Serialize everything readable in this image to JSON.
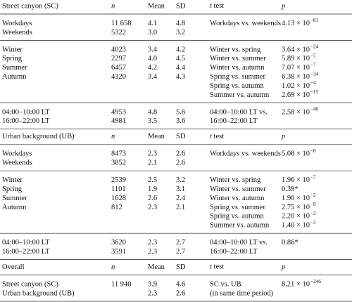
{
  "table": {
    "sections": [
      {
        "header": {
          "label": "Street canyon (SC)",
          "n": "n",
          "mean": "Mean",
          "sd": "SD",
          "ttest": "t test",
          "p": "p"
        },
        "groups": [
          {
            "rows": [
              {
                "label": "Workdays",
                "n": "11 658",
                "mean": "4.1",
                "sd": "4.8"
              },
              {
                "label": "Weekends",
                "n": "5322",
                "mean": "3.0",
                "sd": "3.2"
              }
            ],
            "tests": [
              {
                "label": "Workdays vs. weekends",
                "p": {
                  "base": "4.13 × 10",
                  "exp": "−81"
                }
              }
            ]
          },
          {
            "rows": [
              {
                "label": "Winter",
                "n": "4023",
                "mean": "3.4",
                "sd": "4.2"
              },
              {
                "label": "Spring",
                "n": "2297",
                "mean": "4.0",
                "sd": "4.5"
              },
              {
                "label": "Summer",
                "n": "6457",
                "mean": "4.2",
                "sd": "4.4"
              },
              {
                "label": "Autumn",
                "n": "4320",
                "mean": "3.4",
                "sd": "4.3"
              }
            ],
            "tests": [
              {
                "label": "Winter vs. spring",
                "p": {
                  "base": "3.64 × 10",
                  "exp": "−24"
                }
              },
              {
                "label": "Winter vs. summer",
                "p": {
                  "base": "5.89 × 10",
                  "exp": "−5"
                }
              },
              {
                "label": "Winter vs. autumn",
                "p": {
                  "base": "7.07 × 10",
                  "exp": "−7"
                }
              },
              {
                "label": "Spring vs. summer",
                "p": {
                  "base": "6.38 × 10",
                  "exp": "−34"
                }
              },
              {
                "label": "Spring vs. autumn",
                "p": {
                  "base": "1.02 × 10",
                  "exp": "−4"
                }
              },
              {
                "label": "Summer vs. autumn",
                "p": {
                  "base": "2.69 × 10",
                  "exp": "−15"
                }
              }
            ]
          },
          {
            "rows": [
              {
                "label": "04:00–10:00 LT",
                "n": "4953",
                "mean": "4.8",
                "sd": "5.6"
              },
              {
                "label": "16:00–22:00 LT",
                "n": "4981",
                "mean": "3.5",
                "sd": "3.6"
              }
            ],
            "tests": [
              {
                "label": "04:00–10:00 LT vs.",
                "p": {
                  "base": "2.58 × 10",
                  "exp": "−40"
                }
              },
              {
                "label": "16:00–22:00 LT"
              }
            ]
          }
        ]
      },
      {
        "header": {
          "label": "Urban background (UB)",
          "n": "n",
          "mean": "Mean",
          "sd": "SD",
          "ttest": "t test",
          "p": "p"
        },
        "groups": [
          {
            "rows": [
              {
                "label": "Workdays",
                "n": "8473",
                "mean": "2.3",
                "sd": "2.6"
              },
              {
                "label": "Weekends",
                "n": "3852",
                "mean": "2.1",
                "sd": "2.6"
              }
            ],
            "tests": [
              {
                "label": "Workdays vs. weekends",
                "p": {
                  "base": "5.08 × 10",
                  "exp": "−8"
                }
              }
            ]
          },
          {
            "rows": [
              {
                "label": "Winter",
                "n": "2539",
                "mean": "2.5",
                "sd": "3.2"
              },
              {
                "label": "Spring",
                "n": "1101",
                "mean": "1.9",
                "sd": "3.1"
              },
              {
                "label": "Summer",
                "n": "1628",
                "mean": "2.6",
                "sd": "2.4"
              },
              {
                "label": "Autumn",
                "n": "812",
                "mean": "2.3",
                "sd": "2.1"
              }
            ],
            "tests": [
              {
                "label": "Winter vs. spring",
                "p": {
                  "base": "1.96 × 10",
                  "exp": "−7"
                }
              },
              {
                "label": "Winter vs. summer",
                "p": {
                  "base": "0.39*"
                }
              },
              {
                "label": "Winter vs. autumn",
                "p": {
                  "base": "1.90 × 10",
                  "exp": "−2"
                }
              },
              {
                "label": "Spring vs. summer",
                "p": {
                  "base": "2.75 × 10",
                  "exp": "−9"
                }
              },
              {
                "label": "Spring vs. autumn",
                "p": {
                  "base": "2.20 × 10",
                  "exp": "−3"
                }
              },
              {
                "label": "Summer vs. autumn",
                "p": {
                  "base": "1.40 × 10",
                  "exp": "−3"
                }
              }
            ]
          },
          {
            "rows": [
              {
                "label": "04:00–10:00 LT",
                "n": "3620",
                "mean": "2.3",
                "sd": "2.7"
              },
              {
                "label": "16:00–22:00 LT",
                "n": "3591",
                "mean": "2.3",
                "sd": "2.7"
              }
            ],
            "tests": [
              {
                "label": "04:00–10:00 LT vs.",
                "p": {
                  "base": "0.86*"
                }
              },
              {
                "label": "16:00–22:00 LT"
              }
            ]
          }
        ]
      },
      {
        "header": {
          "label": "Overall",
          "n": "n",
          "mean": "Mean",
          "sd": "SD",
          "ttest": "t test",
          "p": "p"
        },
        "groups": [
          {
            "rows": [
              {
                "label": "Street canyon (SC)",
                "n": "11 940",
                "mean": "3.9",
                "sd": "4.6"
              },
              {
                "label": "Urban background (UB)",
                "mean": "2.3",
                "sd": "2.6"
              }
            ],
            "tests": [
              {
                "label": "SC vs. UB",
                "p": {
                  "base": "8.21 × 10",
                  "exp": "−246"
                }
              },
              {
                "label": "(in same time period)"
              }
            ]
          }
        ]
      }
    ]
  }
}
